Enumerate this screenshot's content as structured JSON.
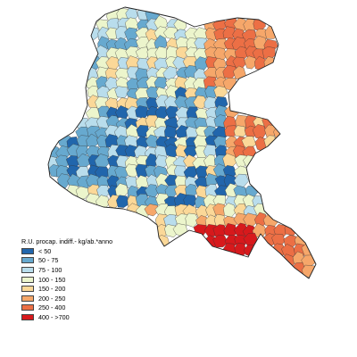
{
  "legend": {
    "title": "R.U. procap. indiff.- kg/ab.*anno",
    "classes": [
      {
        "label": "< 50",
        "color": "#2166ac"
      },
      {
        "label": "50 - 75",
        "color": "#67a9cf"
      },
      {
        "label": "75 - 100",
        "color": "#b9ddec"
      },
      {
        "label": "100 - 150",
        "color": "#ecf5cc"
      },
      {
        "label": "150 - 200",
        "color": "#fbd898"
      },
      {
        "label": "200 - 250",
        "color": "#f6a76a"
      },
      {
        "label": "250 - 400",
        "color": "#ec6f45"
      },
      {
        "label": "400 - >700",
        "color": "#d7191c"
      }
    ]
  }
}
